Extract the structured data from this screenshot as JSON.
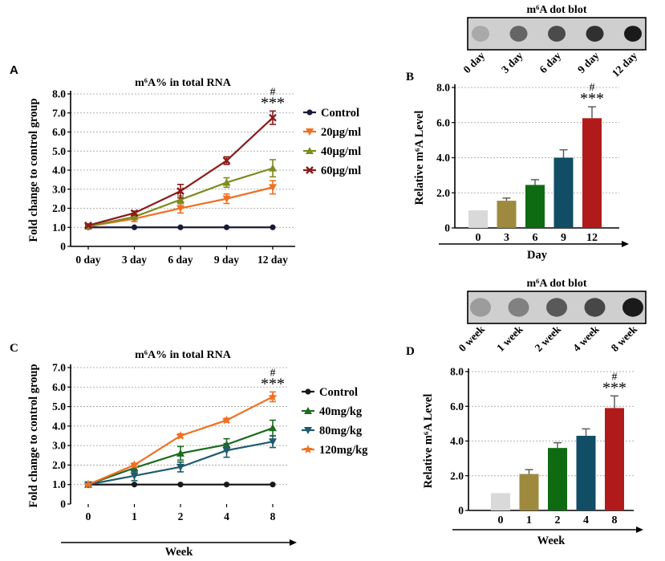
{
  "panels": {
    "A": {
      "letter": "A"
    },
    "B": {
      "letter": "B"
    },
    "C": {
      "letter": "C"
    },
    "D": {
      "letter": "D"
    }
  },
  "dot_blots": [
    {
      "title": "m⁶A dot blot",
      "labels": [
        "0 day",
        "3 day",
        "6 day",
        "9 day",
        "12 day"
      ],
      "intensity": [
        0.18,
        0.55,
        0.7,
        0.85,
        0.97
      ]
    },
    {
      "title": "m⁶A dot blot",
      "labels": [
        "0 week",
        "1 week",
        "2 week",
        "4 week",
        "8 week"
      ],
      "intensity": [
        0.25,
        0.4,
        0.62,
        0.72,
        0.97
      ]
    }
  ],
  "colors": {
    "control": "#1a1a3a",
    "orange": "#f07022",
    "olive": "#7e8b1f",
    "darkred": "#8b1a1a",
    "green": "#1f6b1f",
    "teal": "#1f5a6e",
    "bar_gray": "#d9d9d9",
    "bar_tan": "#9e8a3e",
    "bar_green": "#0f6b12",
    "bar_teal": "#114d64",
    "bar_red": "#b11a1a"
  },
  "chart_data": [
    {
      "id": "A",
      "type": "line",
      "title": "m⁶A% in total RNA",
      "xlabel": "",
      "ylabel": "Fold change to control group",
      "categories": [
        "0 day",
        "3 day",
        "6 day",
        "9 day",
        "12 day"
      ],
      "ylim": [
        0,
        8
      ],
      "yticks": [
        "0",
        "1.0",
        "2.0",
        "3.0",
        "4.0",
        "5.0",
        "6.0",
        "7.0",
        "8.0"
      ],
      "series": [
        {
          "name": "Control",
          "values": [
            1.0,
            1.0,
            1.0,
            1.0,
            1.0
          ],
          "errors": [
            0,
            0,
            0,
            0,
            0
          ],
          "color": "#1a1a3a",
          "marker": "circle"
        },
        {
          "name": "20μg/ml",
          "values": [
            1.05,
            1.45,
            2.0,
            2.5,
            3.1
          ],
          "errors": [
            0.05,
            0.15,
            0.25,
            0.25,
            0.35
          ],
          "color": "#f07022",
          "marker": "tri-down"
        },
        {
          "name": "40μg/ml",
          "values": [
            1.05,
            1.55,
            2.45,
            3.35,
            4.1
          ],
          "errors": [
            0.05,
            0.15,
            0.2,
            0.25,
            0.45
          ],
          "color": "#7e8b1f",
          "marker": "tri-up"
        },
        {
          "name": "60μg/ml",
          "values": [
            1.1,
            1.75,
            2.9,
            4.5,
            6.75
          ],
          "errors": [
            0.05,
            0.1,
            0.35,
            0.2,
            0.35
          ],
          "color": "#8b1a1a",
          "marker": "x"
        }
      ],
      "annotation": {
        "hash": "#",
        "stars": "***"
      }
    },
    {
      "id": "B",
      "type": "bar",
      "title": "",
      "xlabel": "Day",
      "ylabel": "Relative m⁶A Level",
      "categories": [
        "0",
        "3",
        "6",
        "9",
        "12"
      ],
      "values": [
        1.0,
        1.55,
        2.45,
        4.0,
        6.25
      ],
      "errors": [
        0,
        0.15,
        0.3,
        0.45,
        0.65
      ],
      "bar_colors": [
        "#d9d9d9",
        "#9e8a3e",
        "#0f6b12",
        "#114d64",
        "#b11a1a"
      ],
      "ylim": [
        0,
        8
      ],
      "yticks": [
        "0",
        "2.0",
        "4.0",
        "6.0",
        "8.0"
      ],
      "annotation": {
        "hash": "#",
        "stars": "***"
      }
    },
    {
      "id": "C",
      "type": "line",
      "title": "m⁶A% in total RNA",
      "xlabel": "Week",
      "ylabel": "Fold change to control group",
      "categories": [
        "0",
        "1",
        "2",
        "4",
        "8"
      ],
      "ylim": [
        0,
        7
      ],
      "yticks": [
        "0",
        "1.0",
        "2.0",
        "3.0",
        "4.0",
        "5.0",
        "6.0",
        "7.0"
      ],
      "series": [
        {
          "name": "Control",
          "values": [
            1.0,
            1.0,
            1.0,
            1.0,
            1.0
          ],
          "errors": [
            0,
            0,
            0,
            0,
            0
          ],
          "color": "#1a1a1a",
          "marker": "circle"
        },
        {
          "name": "40mg/kg",
          "values": [
            1.0,
            1.85,
            2.6,
            3.05,
            3.9
          ],
          "errors": [
            0.05,
            0.2,
            0.35,
            0.3,
            0.4
          ],
          "color": "#1f6b1f",
          "marker": "tri-up"
        },
        {
          "name": "80mg/kg",
          "values": [
            1.0,
            1.45,
            1.9,
            2.75,
            3.2
          ],
          "errors": [
            0.05,
            0.25,
            0.25,
            0.35,
            0.3
          ],
          "color": "#1f5a6e",
          "marker": "tri-down"
        },
        {
          "name": "120mg/kg",
          "values": [
            1.0,
            2.0,
            3.5,
            4.3,
            5.5
          ],
          "errors": [
            0.05,
            0.1,
            0.1,
            0.1,
            0.25
          ],
          "color": "#f07022",
          "marker": "star"
        }
      ],
      "annotation": {
        "hash": "#",
        "stars": "***"
      }
    },
    {
      "id": "D",
      "type": "bar",
      "title": "",
      "xlabel": "Week",
      "ylabel": "Relative m⁶A Level",
      "categories": [
        "0",
        "1",
        "2",
        "4",
        "8"
      ],
      "values": [
        1.0,
        2.1,
        3.6,
        4.3,
        5.9
      ],
      "errors": [
        0,
        0.25,
        0.3,
        0.4,
        0.7
      ],
      "bar_colors": [
        "#d9d9d9",
        "#9e8a3e",
        "#0f6b12",
        "#114d64",
        "#b11a1a"
      ],
      "ylim": [
        0,
        8
      ],
      "yticks": [
        "0",
        "2.0",
        "4.0",
        "6.0",
        "8.0"
      ],
      "annotation": {
        "hash": "#",
        "stars": "***"
      }
    }
  ]
}
